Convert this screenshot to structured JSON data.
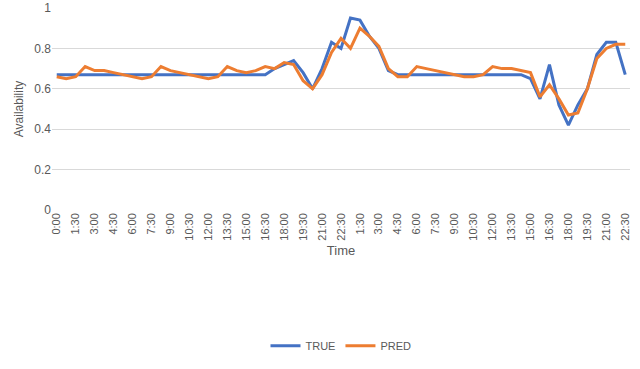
{
  "chart_data": {
    "type": "line",
    "x_label": "Time",
    "y_label": "Availability",
    "categories": [
      "0:00",
      null,
      "1:30",
      null,
      "3:00",
      null,
      "4:30",
      null,
      "6:00",
      null,
      "7:30",
      null,
      "9:00",
      null,
      "10:30",
      null,
      "12:00",
      null,
      "13:30",
      null,
      "15:00",
      null,
      "16:30",
      null,
      "18:00",
      null,
      "19:30",
      null,
      "21:00",
      null,
      "22:30",
      null,
      "1:30",
      null,
      "3:00",
      null,
      "4:30",
      null,
      "6:00",
      null,
      "7:30",
      null,
      "9:00",
      null,
      "10:30",
      null,
      "12:00",
      null,
      "13:30",
      null,
      "15:00",
      null,
      "16:30",
      null,
      "18:00",
      null,
      "19:30",
      null,
      "21:00",
      null,
      "22:30"
    ],
    "series": [
      {
        "name": "TRUE",
        "color": "#4472c4",
        "values": [
          0.67,
          0.67,
          0.67,
          0.67,
          0.67,
          0.67,
          0.67,
          0.67,
          0.67,
          0.67,
          0.67,
          0.67,
          0.67,
          0.67,
          0.67,
          0.67,
          0.67,
          0.67,
          0.67,
          0.67,
          0.67,
          0.67,
          0.67,
          0.7,
          0.72,
          0.74,
          0.68,
          0.6,
          0.7,
          0.83,
          0.8,
          0.95,
          0.94,
          0.86,
          0.8,
          0.69,
          0.67,
          0.67,
          0.67,
          0.67,
          0.67,
          0.67,
          0.67,
          0.67,
          0.67,
          0.67,
          0.67,
          0.67,
          0.67,
          0.67,
          0.65,
          0.55,
          0.72,
          0.52,
          0.42,
          0.52,
          0.6,
          0.77,
          0.83,
          0.83,
          0.67
        ]
      },
      {
        "name": "PRED",
        "color": "#ed7d31",
        "values": [
          0.66,
          0.65,
          0.66,
          0.71,
          0.69,
          0.69,
          0.68,
          0.67,
          0.66,
          0.65,
          0.66,
          0.71,
          0.69,
          0.68,
          0.67,
          0.66,
          0.65,
          0.66,
          0.71,
          0.69,
          0.68,
          0.69,
          0.71,
          0.7,
          0.73,
          0.72,
          0.64,
          0.6,
          0.67,
          0.78,
          0.85,
          0.8,
          0.9,
          0.86,
          0.81,
          0.7,
          0.66,
          0.66,
          0.71,
          0.7,
          0.69,
          0.68,
          0.67,
          0.66,
          0.66,
          0.67,
          0.71,
          0.7,
          0.7,
          0.69,
          0.68,
          0.56,
          0.62,
          0.55,
          0.47,
          0.48,
          0.6,
          0.75,
          0.8,
          0.82,
          0.82
        ]
      }
    ],
    "ylim": [
      0,
      1
    ],
    "yticks": [
      0,
      0.2,
      0.4,
      0.6,
      0.8,
      1
    ],
    "grid": true,
    "legend": "bottom"
  }
}
